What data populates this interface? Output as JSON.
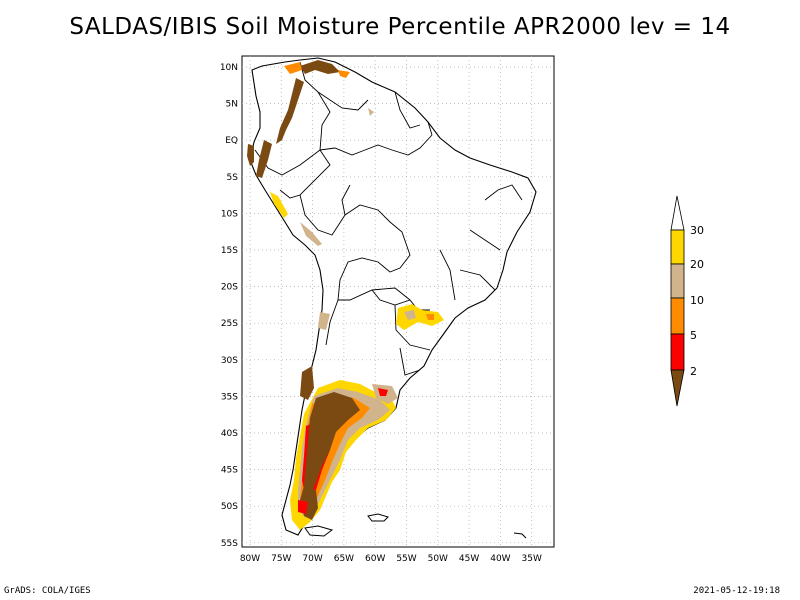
{
  "title": "SALDAS/IBIS Soil Moisture Percentile APR2000 lev = 14",
  "footer": {
    "left": "GrADS: COLA/IGES",
    "right": "2021-05-12-19:18"
  },
  "map": {
    "lat_labels": [
      "10N",
      "5N",
      "EQ",
      "5S",
      "10S",
      "15S",
      "20S",
      "25S",
      "30S",
      "35S",
      "40S",
      "45S",
      "50S",
      "55S"
    ],
    "lon_labels": [
      "80W",
      "75W",
      "70W",
      "65W",
      "60W",
      "55W",
      "50W",
      "45W",
      "40W",
      "35W"
    ],
    "grid": true
  },
  "legend": {
    "labels": [
      "30",
      "20",
      "10",
      "5",
      "2"
    ],
    "colors": {
      "c0_2": "#7a4a12",
      "c2_5": "#ff0000",
      "c5_10": "#ff8c00",
      "c10_20": "#d2b48c",
      "c20_30": "#ffd700",
      "c30_up": "#ffffff"
    }
  }
}
